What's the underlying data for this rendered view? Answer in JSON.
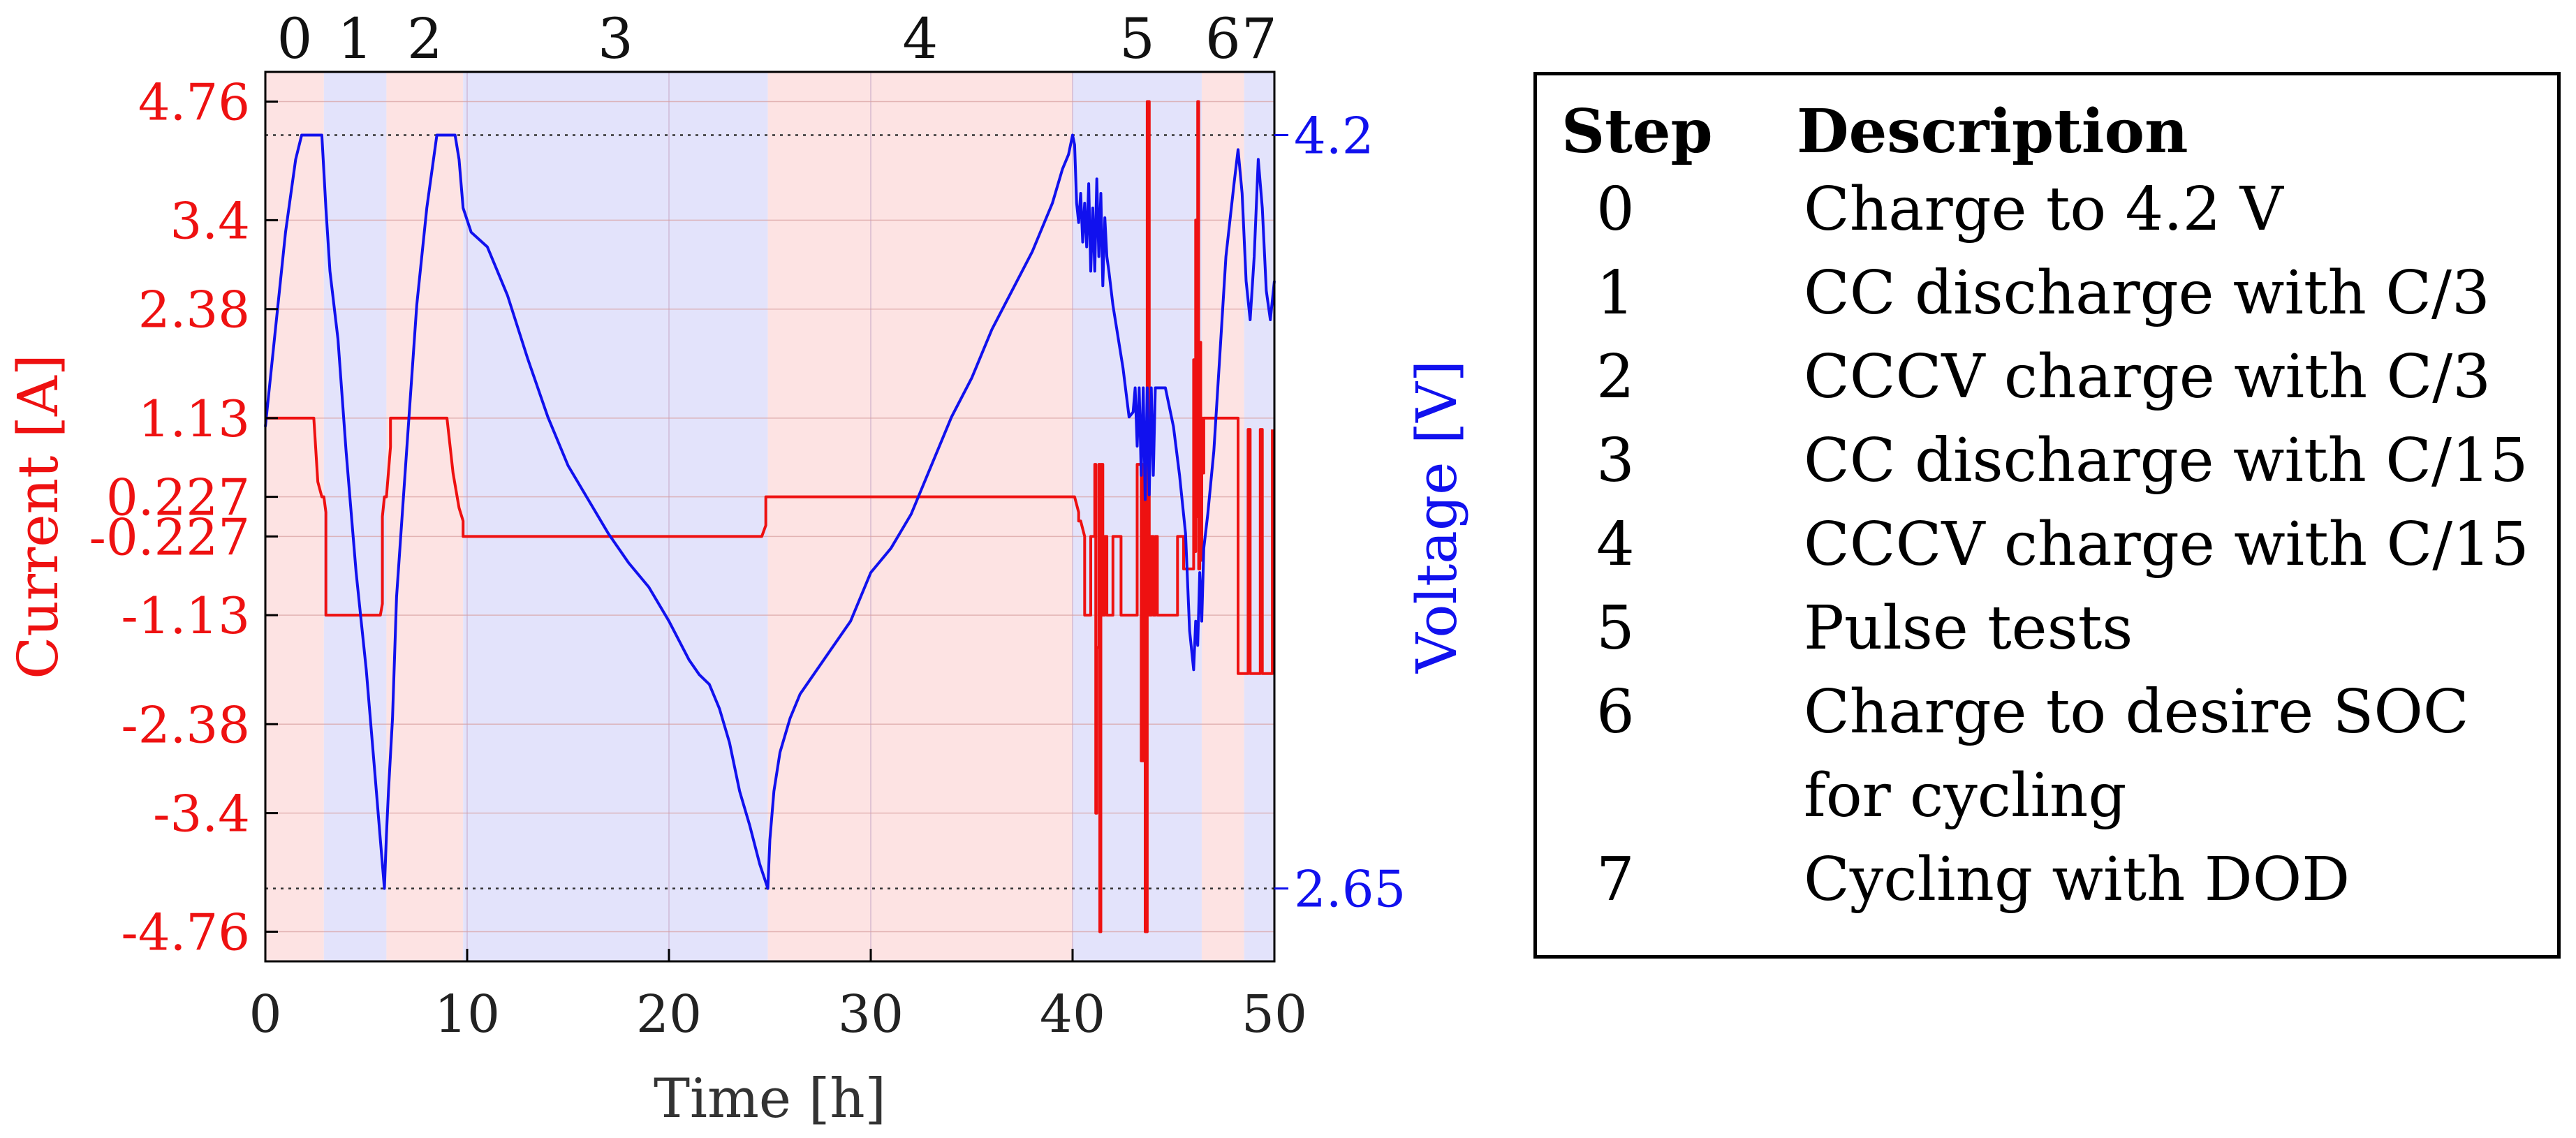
{
  "chart_data": {
    "type": "line",
    "xlabel": "Time [h]",
    "ylabel_left": "Current [A]",
    "ylabel_right": "Voltage [V]",
    "xlim": [
      0,
      50
    ],
    "ylim_left": [
      -5.1,
      5.1
    ],
    "ylim_right": [
      2.5,
      4.33
    ],
    "x_ticks": [
      0,
      10,
      20,
      30,
      40,
      50
    ],
    "x_tick_labels": [
      "0",
      "10",
      "20",
      "30",
      "40",
      "50"
    ],
    "left_ticks": [
      4.76,
      3.4,
      2.38,
      1.13,
      0.227,
      -0.227,
      -1.13,
      -2.38,
      -3.4,
      -4.76
    ],
    "left_tick_labels": [
      "4.76",
      "3.4",
      "2.38",
      "1.13",
      "0.227",
      "-0.227",
      "-1.13",
      "-2.38",
      "-3.4",
      "-4.76"
    ],
    "right_ticks": [
      4.2,
      2.65
    ],
    "right_tick_labels": [
      "4.2",
      "2.65"
    ],
    "grid": true,
    "step_bands": [
      {
        "label": "0",
        "start": 0,
        "end": 2.9,
        "color": "#fde3e3"
      },
      {
        "label": "1",
        "start": 2.9,
        "end": 6.0,
        "color": "#e3e3fb"
      },
      {
        "label": "2",
        "start": 6.0,
        "end": 9.8,
        "color": "#fde3e3"
      },
      {
        "label": "3",
        "start": 9.8,
        "end": 24.9,
        "color": "#e3e3fb"
      },
      {
        "label": "4",
        "start": 24.9,
        "end": 40.0,
        "color": "#fde3e3"
      },
      {
        "label": "5",
        "start": 40.0,
        "end": 46.4,
        "color": "#e3e3fb"
      },
      {
        "label": "6",
        "start": 46.4,
        "end": 48.5,
        "color": "#fde3e3"
      },
      {
        "label": "7",
        "start": 48.5,
        "end": 50,
        "color": "#e3e3fb"
      }
    ],
    "series": [
      {
        "name": "Current",
        "axis": "left",
        "color": "#ee1111",
        "x": [
          0,
          2.4,
          2.6,
          2.8,
          2.9,
          3.0,
          3.0,
          5.7,
          5.8,
          5.8,
          5.9,
          6.0,
          6.2,
          6.2,
          9.0,
          9.3,
          9.6,
          9.8,
          9.8,
          24.6,
          24.8,
          24.8,
          40.0,
          40.1,
          40.3,
          40.3,
          40.4,
          40.6,
          40.6,
          40.9,
          40.9,
          41.1,
          41.1,
          41.15,
          41.15,
          41.2,
          41.2,
          41.3,
          41.3,
          41.35,
          41.35,
          41.4,
          41.4,
          41.5,
          41.5,
          41.6,
          41.6,
          41.7,
          41.7,
          42.0,
          42.0,
          42.4,
          42.4,
          43.2,
          43.2,
          43.4,
          43.4,
          43.5,
          43.5,
          43.6,
          43.6,
          43.7,
          43.7,
          43.8,
          43.8,
          43.9,
          43.9,
          44.0,
          44.0,
          44.1,
          44.1,
          44.2,
          44.2,
          45.2,
          45.2,
          45.5,
          45.5,
          46.0,
          46.0,
          46.05,
          46.05,
          46.1,
          46.1,
          46.15,
          46.15,
          46.2,
          46.2,
          46.25,
          46.25,
          46.3,
          46.3,
          46.35,
          46.35,
          46.4,
          46.4,
          46.45,
          46.45,
          46.5,
          46.5,
          48.2,
          48.2,
          48.7,
          48.7,
          48.8,
          48.8,
          49.3,
          49.3,
          49.4,
          49.4,
          49.9,
          49.9
        ],
        "y": [
          1.13,
          1.13,
          0.4,
          0.227,
          0.227,
          0.05,
          -1.13,
          -1.13,
          -1.0,
          0.0,
          0.227,
          0.227,
          0.8,
          1.13,
          1.13,
          0.5,
          0.1,
          -0.05,
          -0.227,
          -0.227,
          -0.1,
          0.227,
          0.227,
          0.227,
          0.05,
          -0.05,
          -0.05,
          -0.227,
          -1.13,
          -1.13,
          -0.227,
          -0.227,
          0.6,
          0.6,
          -3.4,
          -3.4,
          -1.5,
          -1.5,
          0.6,
          0.6,
          -4.76,
          -4.76,
          0.6,
          0.6,
          -1.13,
          -1.13,
          -0.227,
          -0.227,
          -1.13,
          -1.13,
          -0.227,
          -0.227,
          -1.13,
          -1.13,
          0.6,
          0.6,
          -2.8,
          -2.8,
          0.6,
          0.6,
          -4.76,
          -4.76,
          4.76,
          4.76,
          -1.13,
          -1.13,
          -0.227,
          -0.227,
          -1.13,
          -1.13,
          -0.227,
          -0.227,
          -1.13,
          -1.13,
          -0.227,
          -0.227,
          -0.6,
          -0.6,
          1.8,
          1.8,
          -0.4,
          -0.4,
          3.4,
          3.4,
          0.0,
          0.0,
          4.76,
          4.76,
          -0.6,
          -0.6,
          2.0,
          2.0,
          -0.5,
          -0.5,
          1.13,
          1.13,
          0.5,
          0.5,
          1.13,
          1.13,
          -1.8,
          -1.8,
          1.0,
          1.0,
          -1.8,
          -1.8,
          1.0,
          1.0,
          -1.8,
          -1.8,
          1.0
        ]
      },
      {
        "name": "Voltage",
        "axis": "right",
        "color": "#1111ee",
        "x": [
          0,
          0.5,
          1.0,
          1.5,
          1.8,
          2.2,
          2.8,
          3.0,
          3.2,
          3.6,
          4.0,
          4.5,
          5.0,
          5.4,
          5.7,
          5.9,
          6.0,
          6.1,
          6.3,
          6.5,
          7.0,
          7.5,
          8.0,
          8.5,
          8.8,
          9.4,
          9.6,
          9.8,
          10.2,
          11.0,
          12.0,
          13.0,
          14.0,
          15.0,
          16.0,
          17.0,
          18.0,
          19.0,
          20.0,
          21.0,
          21.5,
          22.0,
          22.5,
          23.0,
          23.5,
          24.0,
          24.5,
          24.9,
          25.0,
          25.2,
          25.5,
          26.0,
          26.5,
          27.0,
          28.0,
          29.0,
          30.0,
          31.0,
          32.0,
          33.0,
          34.0,
          35.0,
          36.0,
          37.0,
          38.0,
          39.0,
          39.5,
          39.8,
          40.0,
          40.1,
          40.2,
          40.3,
          40.4,
          40.5,
          40.6,
          40.7,
          40.8,
          40.9,
          41.0,
          41.1,
          41.2,
          41.3,
          41.4,
          41.5,
          41.6,
          41.7,
          41.8,
          42.0,
          42.5,
          42.8,
          43.0,
          43.1,
          43.2,
          43.3,
          43.4,
          43.5,
          43.6,
          43.7,
          43.8,
          43.9,
          44.0,
          44.1,
          44.3,
          44.6,
          45.0,
          45.3,
          45.6,
          45.8,
          46.0,
          46.1,
          46.2,
          46.3,
          46.4,
          46.5,
          46.7,
          47.0,
          47.3,
          47.6,
          48.0,
          48.2,
          48.4,
          48.6,
          48.8,
          49.0,
          49.2,
          49.4,
          49.6,
          49.8,
          50.0
        ],
        "y": [
          3.6,
          3.8,
          4.0,
          4.15,
          4.2,
          4.2,
          4.2,
          4.05,
          3.92,
          3.78,
          3.55,
          3.3,
          3.1,
          2.9,
          2.75,
          2.65,
          2.76,
          2.85,
          3.0,
          3.25,
          3.55,
          3.85,
          4.05,
          4.2,
          4.2,
          4.2,
          4.15,
          4.05,
          4.0,
          3.97,
          3.87,
          3.74,
          3.62,
          3.52,
          3.45,
          3.38,
          3.32,
          3.27,
          3.2,
          3.12,
          3.09,
          3.07,
          3.02,
          2.95,
          2.85,
          2.78,
          2.7,
          2.65,
          2.75,
          2.85,
          2.93,
          3.0,
          3.05,
          3.08,
          3.14,
          3.2,
          3.3,
          3.35,
          3.42,
          3.52,
          3.62,
          3.7,
          3.8,
          3.88,
          3.96,
          4.06,
          4.13,
          4.16,
          4.2,
          4.18,
          4.06,
          4.02,
          4.08,
          3.98,
          4.06,
          3.97,
          4.1,
          3.92,
          4.05,
          3.92,
          4.11,
          3.95,
          4.08,
          3.89,
          4.03,
          3.95,
          3.92,
          3.85,
          3.72,
          3.62,
          3.63,
          3.68,
          3.56,
          3.68,
          3.5,
          3.68,
          3.45,
          3.68,
          3.46,
          3.68,
          3.5,
          3.68,
          3.68,
          3.68,
          3.6,
          3.5,
          3.38,
          3.18,
          3.1,
          3.2,
          3.15,
          3.3,
          3.2,
          3.35,
          3.42,
          3.55,
          3.75,
          3.95,
          4.1,
          4.17,
          4.08,
          3.9,
          3.82,
          3.95,
          4.15,
          4.05,
          3.88,
          3.82,
          3.9
        ]
      }
    ]
  },
  "legend": {
    "header_step": "Step",
    "header_desc": "Description",
    "rows": [
      {
        "step": "0",
        "desc": "Charge to 4.2 V"
      },
      {
        "step": "1",
        "desc": "CC discharge with C/3"
      },
      {
        "step": "2",
        "desc": "CCCV charge with C/3"
      },
      {
        "step": "3",
        "desc": "CC discharge with C/15"
      },
      {
        "step": "4",
        "desc": "CCCV charge with C/15"
      },
      {
        "step": "5",
        "desc": "Pulse tests"
      },
      {
        "step": "6",
        "desc": "Charge to desire SOC"
      },
      {
        "step": "",
        "desc": "for cycling"
      },
      {
        "step": "7",
        "desc": "Cycling with DOD"
      }
    ]
  }
}
